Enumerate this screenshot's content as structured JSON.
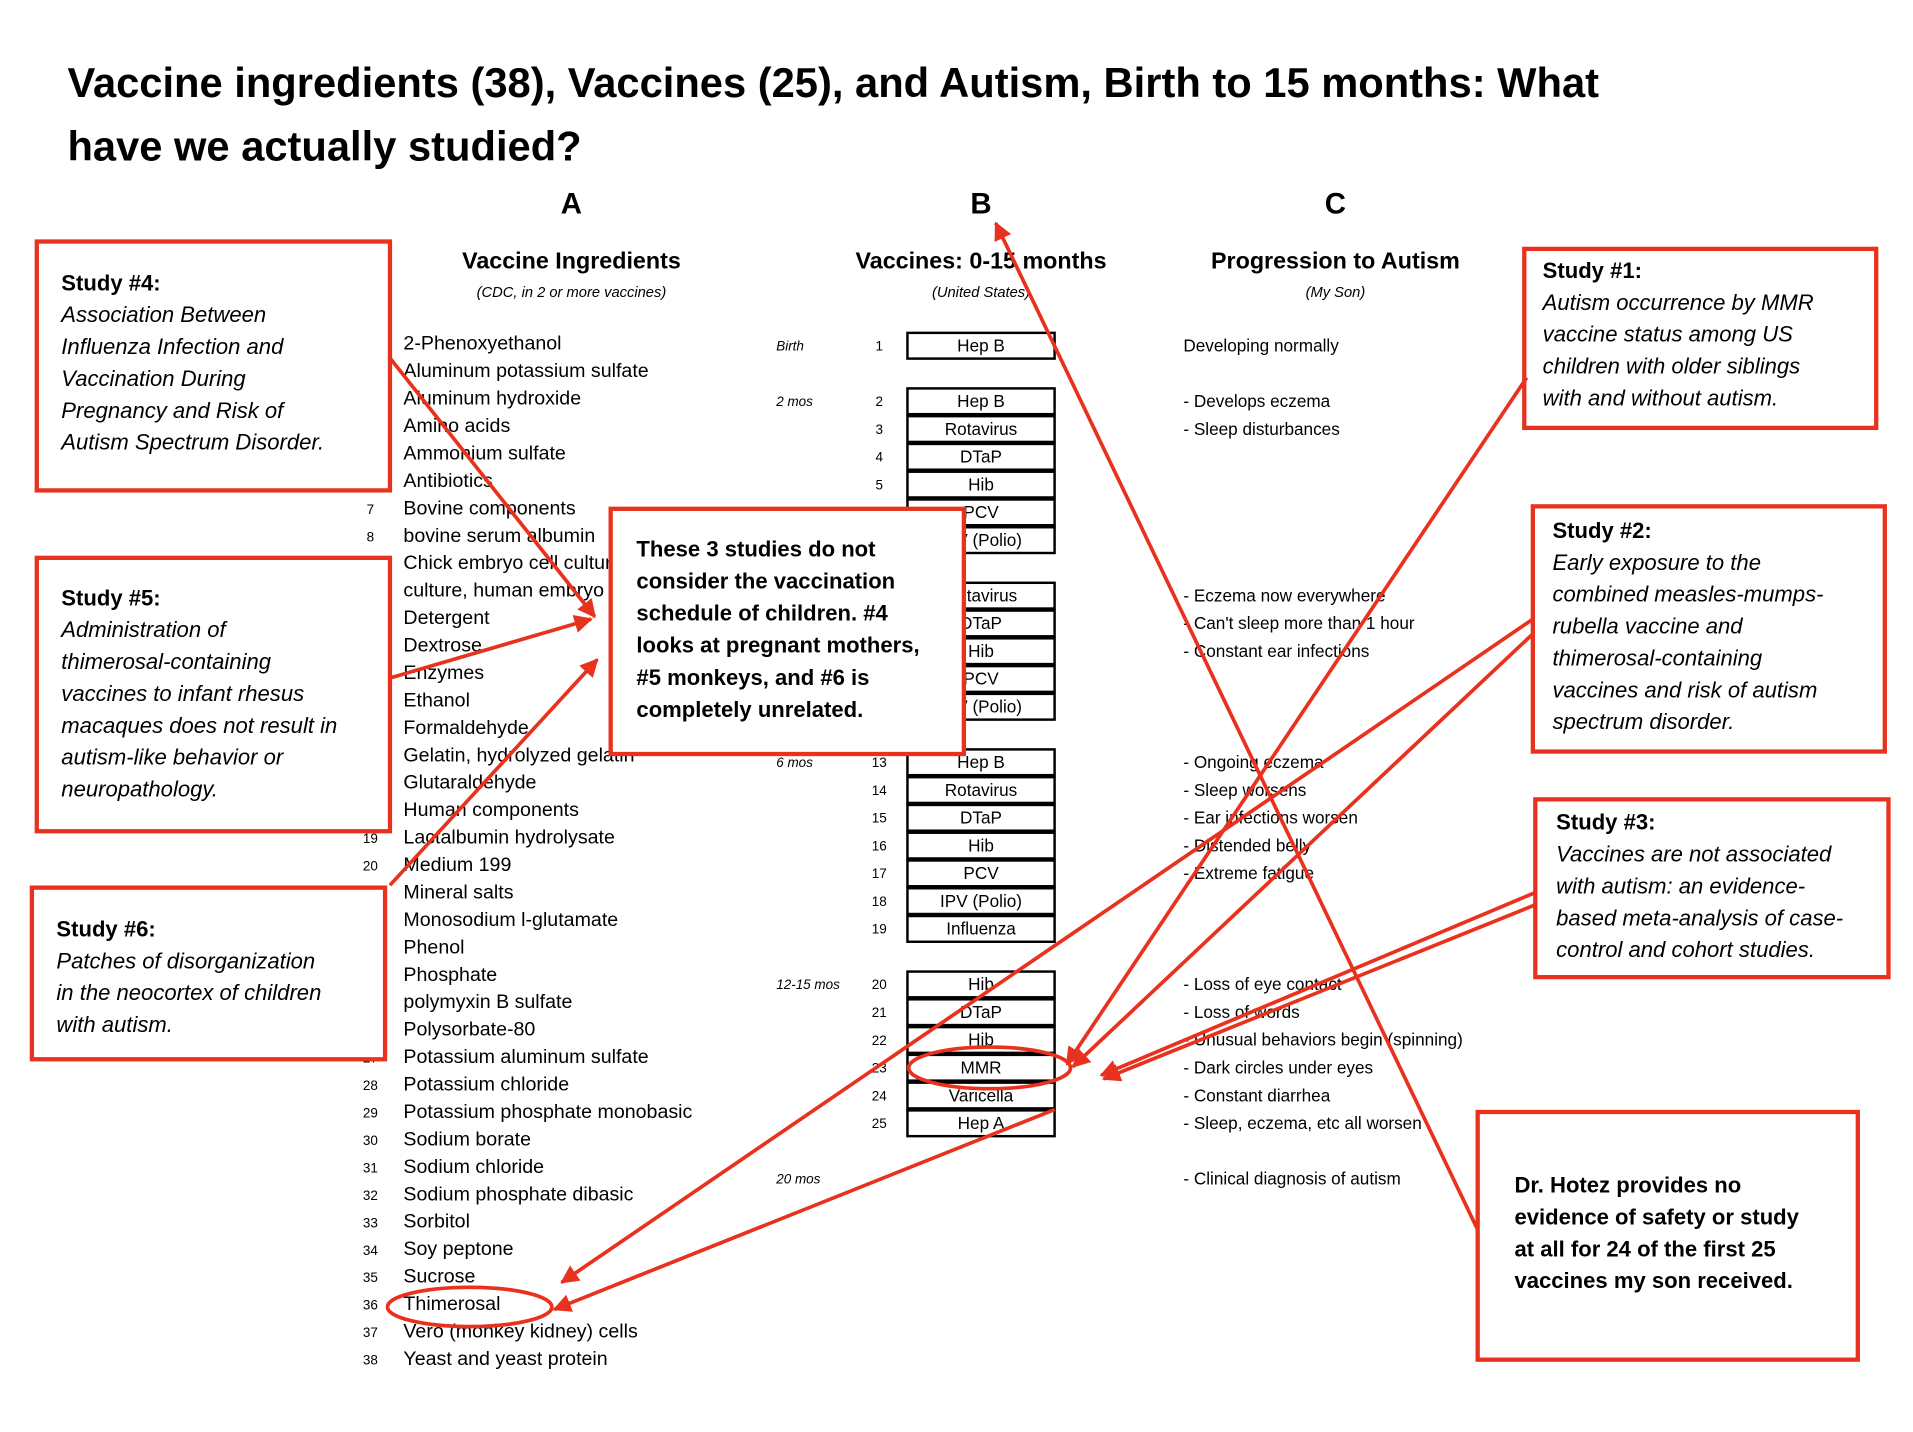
{
  "title": [
    "Vaccine ingredients (38), Vaccines (25), and Autism, Birth to 15 months: What",
    "have we actually studied?"
  ],
  "column_a": {
    "letter": "A",
    "heading": "Vaccine Ingredients",
    "subheading": "(CDC, in 2 or more vaccines)",
    "items": [
      {
        "num": null,
        "text": "2-Phenoxyethanol"
      },
      {
        "num": null,
        "text": "Aluminum potassium sulfate"
      },
      {
        "num": null,
        "text": "Aluminum hydroxide"
      },
      {
        "num": null,
        "text": "Amino acids"
      },
      {
        "num": null,
        "text": "Ammonium sulfate"
      },
      {
        "num": null,
        "text": "Antibiotics"
      },
      {
        "num": "7",
        "text": "Bovine components"
      },
      {
        "num": "8",
        "text": "bovine serum albumin"
      },
      {
        "num": null,
        "text": "Chick embryo cell culture"
      },
      {
        "num": null,
        "text": "culture, human embryo"
      },
      {
        "num": null,
        "text": "Detergent"
      },
      {
        "num": null,
        "text": "Dextrose"
      },
      {
        "num": null,
        "text": "Enzymes"
      },
      {
        "num": null,
        "text": "Ethanol"
      },
      {
        "num": null,
        "text": "Formaldehyde"
      },
      {
        "num": null,
        "text": "Gelatin, hydrolyzed gelatin"
      },
      {
        "num": null,
        "text": "Glutaraldehyde"
      },
      {
        "num": null,
        "text": "Human components"
      },
      {
        "num": "19",
        "text": "Lactalbumin hydrolysate"
      },
      {
        "num": "20",
        "text": "Medium 199"
      },
      {
        "num": null,
        "text": "Mineral salts"
      },
      {
        "num": null,
        "text": "Monosodium l-glutamate"
      },
      {
        "num": null,
        "text": "Phenol"
      },
      {
        "num": null,
        "text": "Phosphate"
      },
      {
        "num": null,
        "text": "polymyxin B sulfate"
      },
      {
        "num": null,
        "text": "Polysorbate-80"
      },
      {
        "num": "27",
        "text": "Potassium aluminum sulfate"
      },
      {
        "num": "28",
        "text": "Potassium chloride"
      },
      {
        "num": "29",
        "text": "Potassium phosphate monobasic"
      },
      {
        "num": "30",
        "text": "Sodium borate"
      },
      {
        "num": "31",
        "text": "Sodium chloride"
      },
      {
        "num": "32",
        "text": "Sodium phosphate dibasic"
      },
      {
        "num": "33",
        "text": "Sorbitol"
      },
      {
        "num": "34",
        "text": "Soy peptone"
      },
      {
        "num": "35",
        "text": "Sucrose"
      },
      {
        "num": "36",
        "text": "Thimerosal"
      },
      {
        "num": "37",
        "text": "Vero (monkey kidney) cells"
      },
      {
        "num": "38",
        "text": "Yeast and yeast protein"
      }
    ]
  },
  "column_b": {
    "letter": "B",
    "heading": "Vaccines: 0-15 months",
    "subheading": "(United States)"
  },
  "column_c": {
    "letter": "C",
    "heading": "Progression to Autism",
    "subheading": "(My Son)"
  },
  "schedule": [
    {
      "age": "Birth",
      "vaccines": [
        {
          "num": "1",
          "name": "Hep B"
        }
      ],
      "progression": [
        "Developing normally"
      ]
    },
    {
      "age": "2 mos",
      "vaccines": [
        {
          "num": "2",
          "name": "Hep B"
        },
        {
          "num": "3",
          "name": "Rotavirus"
        },
        {
          "num": "4",
          "name": "DTaP"
        },
        {
          "num": "5",
          "name": "Hib"
        },
        {
          "num": null,
          "name": "PCV"
        },
        {
          "num": null,
          "name": "IPV (Polio)"
        }
      ],
      "progression": [
        "- Develops eczema",
        "- Sleep disturbances"
      ]
    },
    {
      "age": null,
      "vaccines": [
        {
          "num": null,
          "name": "Rotavirus"
        },
        {
          "num": null,
          "name": "DTaP"
        },
        {
          "num": null,
          "name": "Hib"
        },
        {
          "num": null,
          "name": "PCV"
        },
        {
          "num": null,
          "name": "IPV (Polio)"
        }
      ],
      "progression": [
        "- Eczema now everywhere",
        "- Can't sleep more than 1 hour",
        "- Constant ear infections"
      ]
    },
    {
      "age": "6 mos",
      "vaccines": [
        {
          "num": "13",
          "name": "Hep B"
        },
        {
          "num": "14",
          "name": "Rotavirus"
        },
        {
          "num": "15",
          "name": "DTaP"
        },
        {
          "num": "16",
          "name": "Hib"
        },
        {
          "num": "17",
          "name": "PCV"
        },
        {
          "num": "18",
          "name": "IPV (Polio)"
        },
        {
          "num": "19",
          "name": "Influenza"
        }
      ],
      "progression": [
        "- Ongoing eczema",
        "- Sleep worsens",
        "- Ear infections worsen",
        "- Distended belly",
        "- Extreme fatigue"
      ]
    },
    {
      "age": "12-15 mos",
      "vaccines": [
        {
          "num": "20",
          "name": "Hib"
        },
        {
          "num": "21",
          "name": "DTaP"
        },
        {
          "num": "22",
          "name": "Hib"
        },
        {
          "num": "23",
          "name": "MMR"
        },
        {
          "num": "24",
          "name": "Varicella"
        },
        {
          "num": "25",
          "name": "Hep A"
        }
      ],
      "progression": [
        "- Loss of eye contact",
        "- Loss of words",
        "- Unusual behaviors begin (spinning)",
        "- Dark circles under eyes",
        "- Constant diarrhea",
        "- Sleep, eczema, etc all worsen"
      ]
    },
    {
      "age": "20 mos",
      "vaccines": [],
      "progression": [
        "- Clinical diagnosis of autism"
      ]
    }
  ],
  "studies": [
    {
      "heading": "Study #4:",
      "lines": [
        "Association Between",
        "Influenza Infection and",
        "Vaccination During",
        "Pregnancy and Risk of",
        "Autism Spectrum Disorder."
      ]
    },
    {
      "heading": "Study #5:",
      "lines": [
        "Administration of",
        "thimerosal-containing",
        "vaccines to infant rhesus",
        "macaques does not result in",
        "autism-like behavior or",
        "neuropathology."
      ]
    },
    {
      "heading": "Study #6:",
      "lines": [
        "Patches of disorganization",
        "in the neocortex of children",
        "with autism."
      ]
    },
    {
      "heading": "Study #1:",
      "lines": [
        "Autism occurrence by MMR",
        "vaccine status among US",
        "children with older siblings",
        "with and without autism."
      ]
    },
    {
      "heading": "Study #2:",
      "lines": [
        "Early exposure to the",
        "combined measles-mumps-",
        "rubella vaccine and",
        "thimerosal-containing",
        "vaccines and risk of autism",
        "spectrum disorder."
      ]
    },
    {
      "heading": "Study #3:",
      "lines": [
        "Vaccines are not associated",
        "with autism: an evidence-",
        "based meta-analysis of case-",
        "control and cohort studies."
      ]
    }
  ],
  "note": {
    "lines": [
      "These 3 studies do not",
      "consider the vaccination",
      "schedule of children. #4",
      "looks at pregnant mothers,",
      "#5 monkeys, and #6 is",
      "completely unrelated."
    ]
  },
  "hotez": {
    "lines": [
      "Dr. Hotez provides no",
      "evidence of safety or study",
      "at all for 24 of the first 25",
      "vaccines my son received."
    ]
  }
}
